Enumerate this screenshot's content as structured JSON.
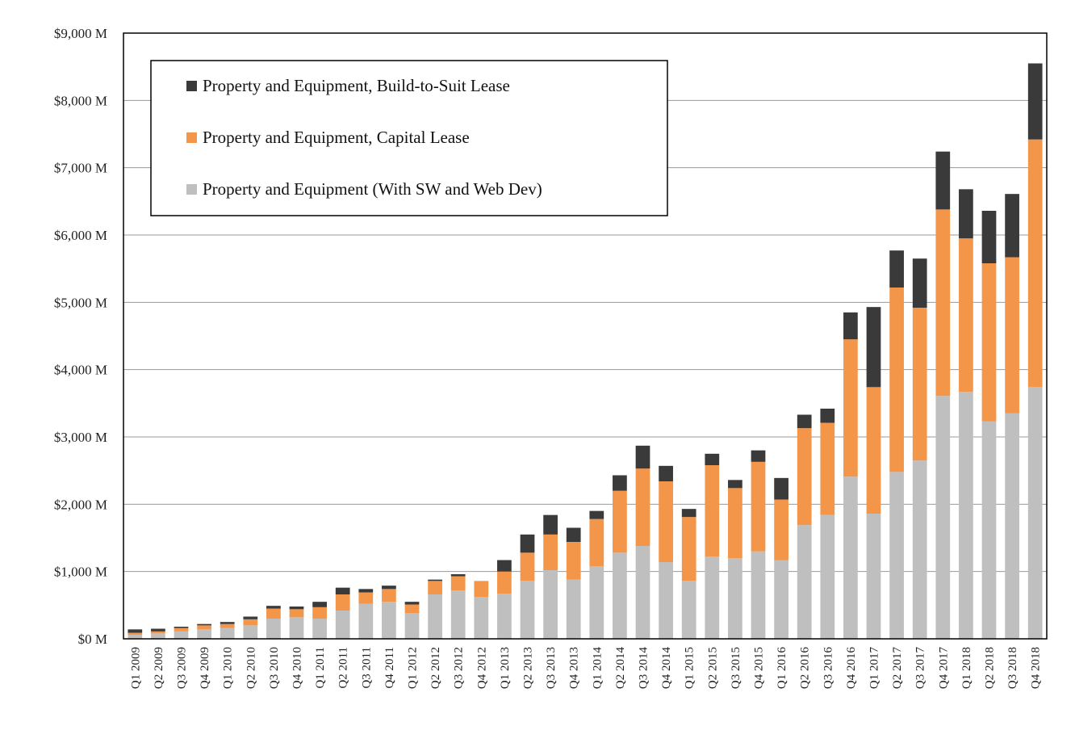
{
  "chart_data": {
    "type": "bar",
    "stacked": true,
    "title": "",
    "xlabel": "",
    "ylabel": "",
    "ylim": [
      0,
      9000
    ],
    "y_ticks": [
      {
        "value": 0,
        "label": "$0 M"
      },
      {
        "value": 1000,
        "label": "$1,000 M"
      },
      {
        "value": 2000,
        "label": "$2,000 M"
      },
      {
        "value": 3000,
        "label": "$3,000 M"
      },
      {
        "value": 4000,
        "label": "$4,000 M"
      },
      {
        "value": 5000,
        "label": "$5,000 M"
      },
      {
        "value": 6000,
        "label": "$6,000 M"
      },
      {
        "value": 7000,
        "label": "$7,000 M"
      },
      {
        "value": 8000,
        "label": "$8,000 M"
      },
      {
        "value": 9000,
        "label": "$9,000 M"
      }
    ],
    "grid": true,
    "legend_position": "top-left",
    "categories": [
      "Q1 2009",
      "Q2 2009",
      "Q3 2009",
      "Q4 2009",
      "Q1 2010",
      "Q2 2010",
      "Q3 2010",
      "Q4 2010",
      "Q1 2011",
      "Q2 2011",
      "Q3 2011",
      "Q4 2011",
      "Q1 2012",
      "Q2 2012",
      "Q3 2012",
      "Q4 2012",
      "Q1 2013",
      "Q2 2013",
      "Q3 2013",
      "Q4 2013",
      "Q1 2014",
      "Q2 2014",
      "Q3 2014",
      "Q4 2014",
      "Q1 2015",
      "Q2 2015",
      "Q3 2015",
      "Q4 2015",
      "Q1 2016",
      "Q2 2016",
      "Q3 2016",
      "Q4 2016",
      "Q1 2017",
      "Q2 2017",
      "Q3 2017",
      "Q4 2017",
      "Q1 2018",
      "Q2 2018",
      "Q3 2018",
      "Q4 2018"
    ],
    "series": [
      {
        "name": "Property and Equipment (With SW and Web Dev)",
        "color": "#bfbfbf",
        "values": [
          60,
          80,
          110,
          140,
          160,
          200,
          300,
          320,
          300,
          420,
          520,
          550,
          380,
          660,
          720,
          620,
          670,
          860,
          1020,
          880,
          1080,
          1280,
          1380,
          1140,
          860,
          1220,
          1200,
          1300,
          1170,
          1690,
          1840,
          2410,
          1860,
          2480,
          2650,
          3610,
          3670,
          3230,
          3350,
          3740
        ]
      },
      {
        "name": "Property and Equipment, Capital Lease",
        "color": "#f4964a",
        "values": [
          30,
          30,
          50,
          60,
          60,
          90,
          150,
          120,
          170,
          240,
          170,
          190,
          130,
          200,
          210,
          240,
          330,
          420,
          530,
          560,
          700,
          920,
          1150,
          1200,
          950,
          1360,
          1040,
          1330,
          900,
          1440,
          1370,
          2040,
          1880,
          2740,
          2270,
          2770,
          2280,
          2350,
          2320,
          3680
        ]
      },
      {
        "name": "Property and Equipment, Build-to-Suit Lease",
        "color": "#3a3a3a",
        "values": [
          50,
          40,
          20,
          20,
          30,
          40,
          40,
          40,
          80,
          100,
          50,
          50,
          40,
          20,
          30,
          0,
          170,
          270,
          290,
          210,
          120,
          230,
          340,
          230,
          120,
          170,
          120,
          170,
          320,
          200,
          210,
          400,
          1190,
          550,
          730,
          860,
          730,
          780,
          940,
          1130
        ]
      }
    ]
  }
}
